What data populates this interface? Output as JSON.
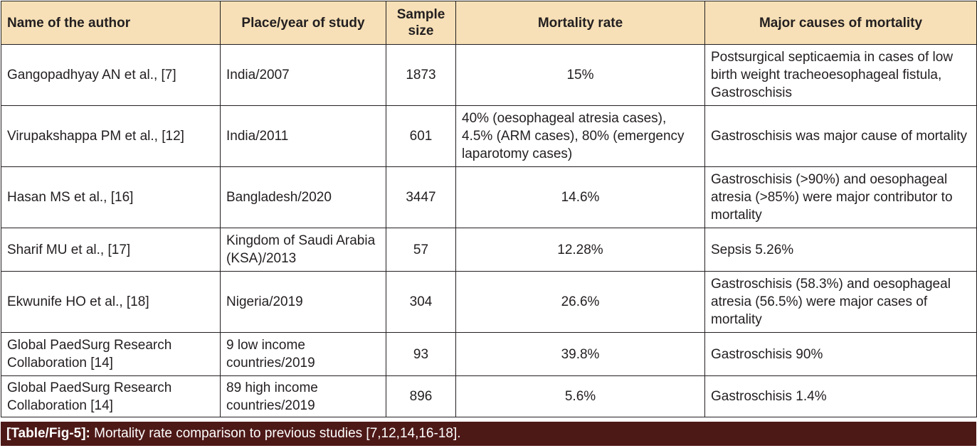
{
  "table": {
    "headers": [
      "Name of the author",
      "Place/year of study",
      "Sample size",
      "Mortality rate",
      "Major causes of mortality"
    ],
    "rows": [
      {
        "author": "Gangopadhyay AN et al., [7]",
        "place": "India/2007",
        "sample": "1873",
        "mortality": "15%",
        "causes": "Postsurgical septicaemia in cases of low birth weight tracheoesophageal fistula, Gastroschisis"
      },
      {
        "author": "Virupakshappa PM et al., [12]",
        "place": "India/2011",
        "sample": "601",
        "mortality": "40% (oesophageal atresia cases), 4.5% (ARM cases), 80% (emergency laparotomy cases)",
        "causes": "Gastroschisis was major cause of mortality"
      },
      {
        "author": "Hasan MS et al., [16]",
        "place": "Bangladesh/2020",
        "sample": "3447",
        "mortality": "14.6%",
        "causes": "Gastroschisis (>90%) and oesophageal atresia (>85%) were major contributor to mortality"
      },
      {
        "author": "Sharif MU et al., [17]",
        "place": "Kingdom of Saudi Arabia (KSA)/2013",
        "sample": "57",
        "mortality": "12.28%",
        "causes": "Sepsis 5.26%"
      },
      {
        "author": "Ekwunife HO et al., [18]",
        "place": "Nigeria/2019",
        "sample": "304",
        "mortality": "26.6%",
        "causes": "Gastroschisis (58.3%) and oesophageal atresia (56.5%) were major cases of mortality"
      },
      {
        "author": "Global PaedSurg Research Collaboration [14]",
        "place": "9 low income countries/2019",
        "sample": "93",
        "mortality": "39.8%",
        "causes": "Gastroschisis 90%"
      },
      {
        "author": "Global PaedSurg Research Collaboration [14]",
        "place": "89 high income countries/2019",
        "sample": "896",
        "mortality": "5.6%",
        "causes": "Gastroschisis 1.4%"
      }
    ]
  },
  "caption": {
    "label": "[Table/Fig-5]:",
    "text": " Mortality rate comparison to previous studies [7,12,14,16-18]."
  },
  "colors": {
    "header_background": "#f7e0b7",
    "caption_background": "#4d1917",
    "border": "#231f20"
  }
}
